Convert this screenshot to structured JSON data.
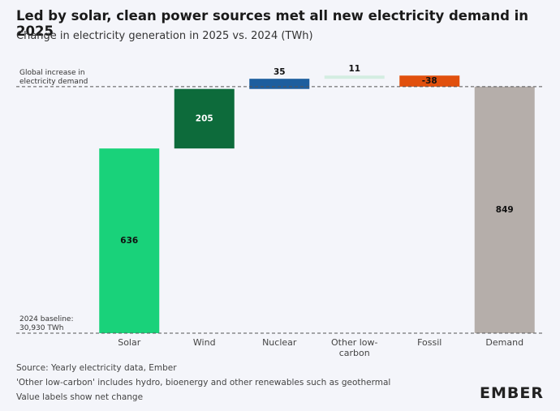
{
  "chart_data": {
    "type": "waterfall",
    "title": "Led by solar, clean power sources met all new electricity demand in 2025",
    "subtitle": "Change in electricity generation in 2025 vs. 2024 (TWh)",
    "categories": [
      "Solar",
      "Wind",
      "Nuclear",
      "Other low-carbon",
      "Fossil",
      "Demand"
    ],
    "values": [
      636,
      205,
      35,
      11,
      -38,
      849
    ],
    "colors": [
      "#19d27a",
      "#0d6b3b",
      "#1d5e9e",
      "#d3ede1",
      "#e1500d",
      "#b5aeaa"
    ],
    "last_is_total": true,
    "ylim": [
      0,
      910
    ],
    "annotations": {
      "top_line": "Global increase in electricity demand",
      "baseline": "2024 baseline: 30,930 TWh"
    },
    "notes": [
      "Source: Yearly electricity data, Ember",
      "'Other low-carbon' includes hydro, bioenergy and other renewables such as geothermal",
      "Value labels show net change"
    ],
    "logo": "EMBER"
  }
}
